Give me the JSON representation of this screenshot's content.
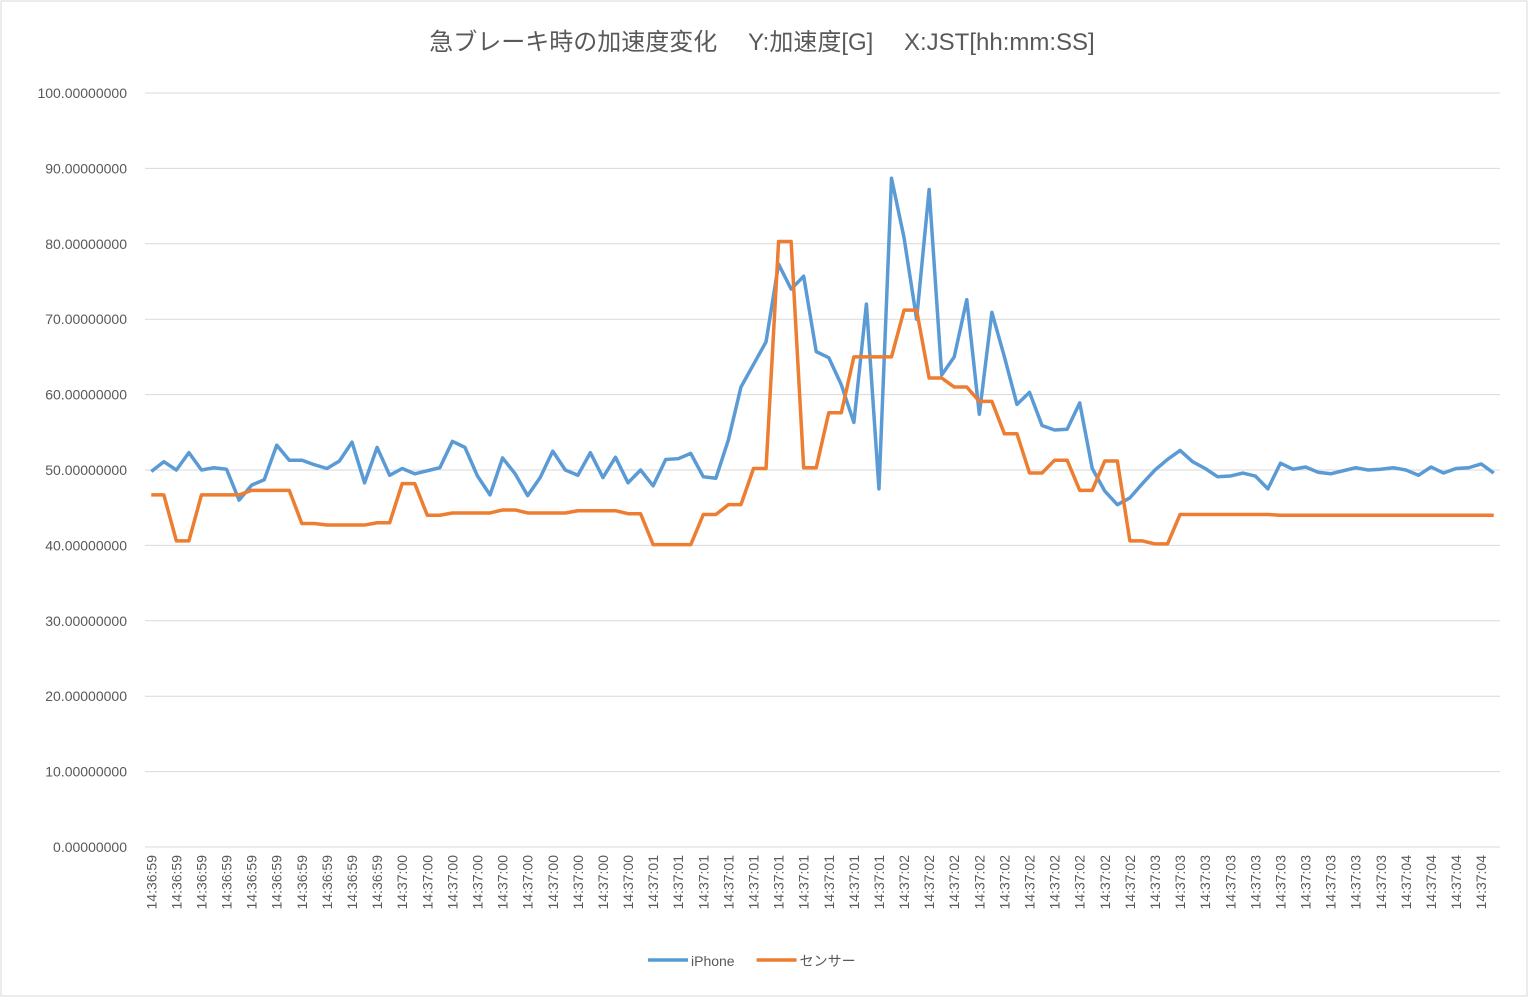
{
  "chart_data": {
    "type": "line",
    "title": "急ブレーキ時の加速度変化　 Y:加速度[G]　 X:JST[hh:mm:SS]",
    "categories": [
      "14:36:59",
      null,
      "14:36:59",
      null,
      "14:36:59",
      null,
      "14:36:59",
      null,
      "14:36:59",
      null,
      "14:36:59",
      null,
      "14:36:59",
      null,
      "14:36:59",
      null,
      "14:36:59",
      null,
      "14:36:59",
      null,
      "14:37:00",
      null,
      "14:37:00",
      null,
      "14:37:00",
      null,
      "14:37:00",
      null,
      "14:37:00",
      null,
      "14:37:00",
      null,
      "14:37:00",
      null,
      "14:37:00",
      null,
      "14:37:00",
      null,
      "14:37:00",
      null,
      "14:37:01",
      null,
      "14:37:01",
      null,
      "14:37:01",
      null,
      "14:37:01",
      null,
      "14:37:01",
      null,
      "14:37:01",
      null,
      "14:37:01",
      null,
      "14:37:01",
      null,
      "14:37:01",
      null,
      "14:37:01",
      null,
      "14:37:02",
      null,
      "14:37:02",
      null,
      "14:37:02",
      null,
      "14:37:02",
      null,
      "14:37:02",
      null,
      "14:37:02",
      null,
      "14:37:02",
      null,
      "14:37:02",
      null,
      "14:37:02",
      null,
      "14:37:02",
      null,
      "14:37:03",
      null,
      "14:37:03",
      null,
      "14:37:03",
      null,
      "14:37:03",
      null,
      "14:37:03",
      null,
      "14:37:03",
      null,
      "14:37:03",
      null,
      "14:37:03",
      null,
      "14:37:03",
      null,
      "14:37:03",
      null,
      "14:37:04",
      null,
      "14:37:04",
      null,
      "14:37:04",
      null,
      "14:37:04",
      null
    ],
    "series": [
      {
        "name": "iPhone",
        "color": "#5b9bd5",
        "values": [
          49.8,
          51.1,
          50,
          52.3,
          50,
          50.3,
          50.1,
          46,
          48,
          48.7,
          53.3,
          51.3,
          51.3,
          50.7,
          50.2,
          51.2,
          53.7,
          48.3,
          53,
          49.3,
          50.2,
          49.5,
          49.9,
          50.3,
          53.8,
          53,
          49.2,
          46.7,
          51.6,
          49.5,
          46.6,
          49,
          52.5,
          50,
          49.3,
          52.3,
          49,
          51.7,
          48.3,
          50,
          47.9,
          51.4,
          51.5,
          52.2,
          49.1,
          48.9,
          54,
          61,
          64,
          67,
          77.3,
          74,
          75.7,
          65.7,
          64.9,
          61.3,
          56.3,
          72,
          47.5,
          88.7,
          80.8,
          70,
          87.2,
          62.6,
          65,
          72.6,
          57.4,
          70.9,
          65,
          58.7,
          60.3,
          55.9,
          55.3,
          55.4,
          58.9,
          50.2,
          47.2,
          45.4,
          46.3,
          48.2,
          50,
          51.4,
          52.6,
          51.1,
          50.2,
          49.1,
          49.2,
          49.6,
          49.2,
          47.5,
          50.9,
          50.1,
          50.4,
          49.7,
          49.5,
          49.9,
          50.3,
          50,
          50.1,
          50.3,
          50,
          49.3,
          50.4,
          49.6,
          50.2,
          50.3,
          50.8,
          49.6
        ]
      },
      {
        "name": "センサー",
        "color": "#ed7d31",
        "values": [
          46.7,
          46.7,
          40.6,
          40.6,
          46.7,
          46.7,
          46.7,
          46.7,
          47.3,
          47.3,
          47.3,
          47.3,
          42.9,
          42.9,
          42.7,
          42.7,
          42.7,
          42.7,
          43,
          43,
          48.2,
          48.2,
          44,
          44,
          44.3,
          44.3,
          44.3,
          44.3,
          44.7,
          44.7,
          44.3,
          44.3,
          44.3,
          44.3,
          44.6,
          44.6,
          44.6,
          44.6,
          44.2,
          44.2,
          40.1,
          40.1,
          40.1,
          40.1,
          44.1,
          44.1,
          45.4,
          45.4,
          50.2,
          50.2,
          80.3,
          80.3,
          50.3,
          50.3,
          57.6,
          57.6,
          65,
          65,
          65,
          65,
          71.2,
          71.2,
          62.2,
          62.2,
          61,
          61,
          59.1,
          59.1,
          54.8,
          54.8,
          49.6,
          49.6,
          51.3,
          51.3,
          47.3,
          47.3,
          51.2,
          51.2,
          40.6,
          40.6,
          40.2,
          40.2,
          44.1,
          44.1,
          44.1,
          44.1,
          44.1,
          44.1,
          44.1,
          44.1,
          44,
          44,
          44,
          44,
          44,
          44,
          44,
          44,
          44,
          44,
          44,
          44,
          44,
          44,
          44,
          44,
          44,
          44
        ]
      }
    ],
    "ylim": [
      0,
      100
    ],
    "yticks": [
      {
        "value": 0,
        "label": "0.00000000"
      },
      {
        "value": 10,
        "label": "10.00000000"
      },
      {
        "value": 20,
        "label": "20.00000000"
      },
      {
        "value": 30,
        "label": "30.00000000"
      },
      {
        "value": 40,
        "label": "40.00000000"
      },
      {
        "value": 50,
        "label": "50.00000000"
      },
      {
        "value": 60,
        "label": "60.00000000"
      },
      {
        "value": 70,
        "label": "70.00000000"
      },
      {
        "value": 80,
        "label": "80.00000000"
      },
      {
        "value": 90,
        "label": "90.00000000"
      },
      {
        "value": 100,
        "label": "100.00000000"
      }
    ],
    "grid": true,
    "legend": "bottom"
  }
}
